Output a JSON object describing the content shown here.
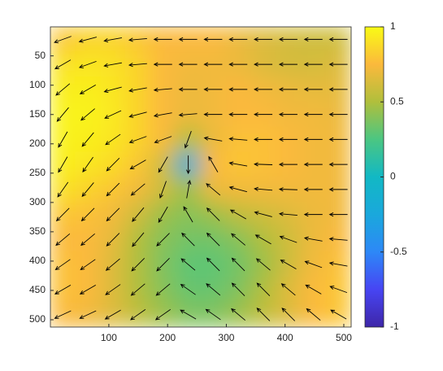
{
  "chart_data": {
    "type": "heatmap",
    "colormap": "parula",
    "clim": [
      -1,
      1
    ],
    "cticks": [
      -1,
      -0.5,
      0,
      0.5,
      1
    ],
    "xlim": [
      0.5,
      512.5
    ],
    "ylim": [
      0.5,
      512.5
    ],
    "y_reversed": true,
    "xticks": [
      100,
      200,
      300,
      400,
      500
    ],
    "yticks": [
      50,
      100,
      150,
      200,
      250,
      300,
      350,
      400,
      450,
      500
    ],
    "arrow_color": "#000000",
    "values": [
      [
        0.8,
        0.85,
        0.85,
        0.8,
        0.75,
        0.75,
        0.75,
        0.7,
        0.65,
        0.62,
        0.6,
        0.6
      ],
      [
        0.9,
        0.92,
        0.9,
        0.85,
        0.75,
        0.72,
        0.72,
        0.7,
        0.65,
        0.62,
        0.62,
        0.65
      ],
      [
        0.95,
        0.95,
        0.92,
        0.85,
        0.75,
        0.7,
        0.72,
        0.75,
        0.72,
        0.7,
        0.68,
        0.68
      ],
      [
        0.97,
        0.97,
        0.93,
        0.85,
        0.75,
        0.7,
        0.72,
        0.75,
        0.75,
        0.72,
        0.72,
        0.7
      ],
      [
        0.97,
        0.95,
        0.92,
        0.85,
        0.75,
        0.5,
        0.7,
        0.78,
        0.78,
        0.75,
        0.72,
        0.72
      ],
      [
        0.95,
        0.92,
        0.88,
        0.8,
        0.6,
        -0.2,
        0.75,
        0.8,
        0.78,
        0.75,
        0.72,
        0.72
      ],
      [
        0.9,
        0.85,
        0.8,
        0.72,
        0.6,
        0.45,
        0.7,
        0.72,
        0.72,
        0.72,
        0.72,
        0.72
      ],
      [
        0.8,
        0.78,
        0.72,
        0.6,
        0.45,
        0.4,
        0.45,
        0.55,
        0.6,
        0.65,
        0.7,
        0.72
      ],
      [
        0.75,
        0.75,
        0.68,
        0.5,
        0.4,
        0.35,
        0.35,
        0.4,
        0.5,
        0.6,
        0.7,
        0.75
      ],
      [
        0.78,
        0.75,
        0.65,
        0.5,
        0.38,
        0.3,
        0.3,
        0.35,
        0.45,
        0.6,
        0.72,
        0.78
      ],
      [
        0.78,
        0.75,
        0.65,
        0.5,
        0.4,
        0.32,
        0.32,
        0.38,
        0.5,
        0.65,
        0.75,
        0.8
      ],
      [
        0.75,
        0.72,
        0.65,
        0.55,
        0.45,
        0.38,
        0.38,
        0.45,
        0.55,
        0.65,
        0.75,
        0.8
      ]
    ],
    "angles": [
      [
        200,
        195,
        190,
        185,
        180,
        180,
        180,
        180,
        180,
        180,
        180,
        180
      ],
      [
        210,
        200,
        190,
        185,
        180,
        180,
        180,
        180,
        180,
        180,
        180,
        180
      ],
      [
        220,
        210,
        195,
        190,
        185,
        180,
        180,
        180,
        180,
        180,
        180,
        180
      ],
      [
        230,
        220,
        205,
        195,
        190,
        185,
        180,
        180,
        180,
        180,
        180,
        180
      ],
      [
        240,
        230,
        215,
        200,
        200,
        250,
        170,
        175,
        180,
        180,
        180,
        180
      ],
      [
        240,
        235,
        225,
        210,
        240,
        270,
        120,
        170,
        178,
        180,
        180,
        180
      ],
      [
        235,
        230,
        225,
        220,
        250,
        80,
        140,
        165,
        175,
        178,
        180,
        180
      ],
      [
        225,
        225,
        225,
        230,
        240,
        120,
        135,
        150,
        165,
        175,
        180,
        180
      ],
      [
        220,
        220,
        225,
        230,
        225,
        135,
        135,
        140,
        150,
        160,
        170,
        175
      ],
      [
        215,
        215,
        220,
        225,
        225,
        140,
        135,
        135,
        140,
        150,
        160,
        170
      ],
      [
        210,
        210,
        215,
        220,
        220,
        145,
        140,
        135,
        135,
        140,
        150,
        160
      ],
      [
        205,
        205,
        210,
        215,
        215,
        150,
        145,
        140,
        135,
        135,
        140,
        150
      ]
    ]
  }
}
